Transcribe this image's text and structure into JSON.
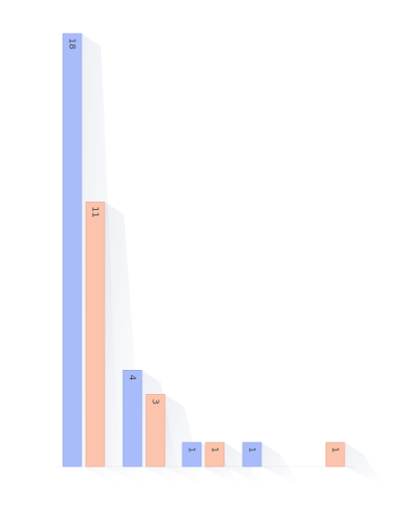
{
  "chart_data": {
    "type": "bar",
    "title": "",
    "xlabel": "",
    "ylabel": "",
    "categories": [
      "",
      "",
      "",
      "",
      ""
    ],
    "ylim": [
      0,
      18
    ],
    "grid": false,
    "legend": "none",
    "series": [
      {
        "color": "#a8bcfc",
        "stroke": "#92a6e8",
        "values": [
          18,
          4,
          1,
          1,
          null
        ]
      },
      {
        "color": "#fcc3ad",
        "stroke": "#e8a890",
        "values": [
          11,
          3,
          1,
          null,
          1
        ]
      }
    ]
  }
}
